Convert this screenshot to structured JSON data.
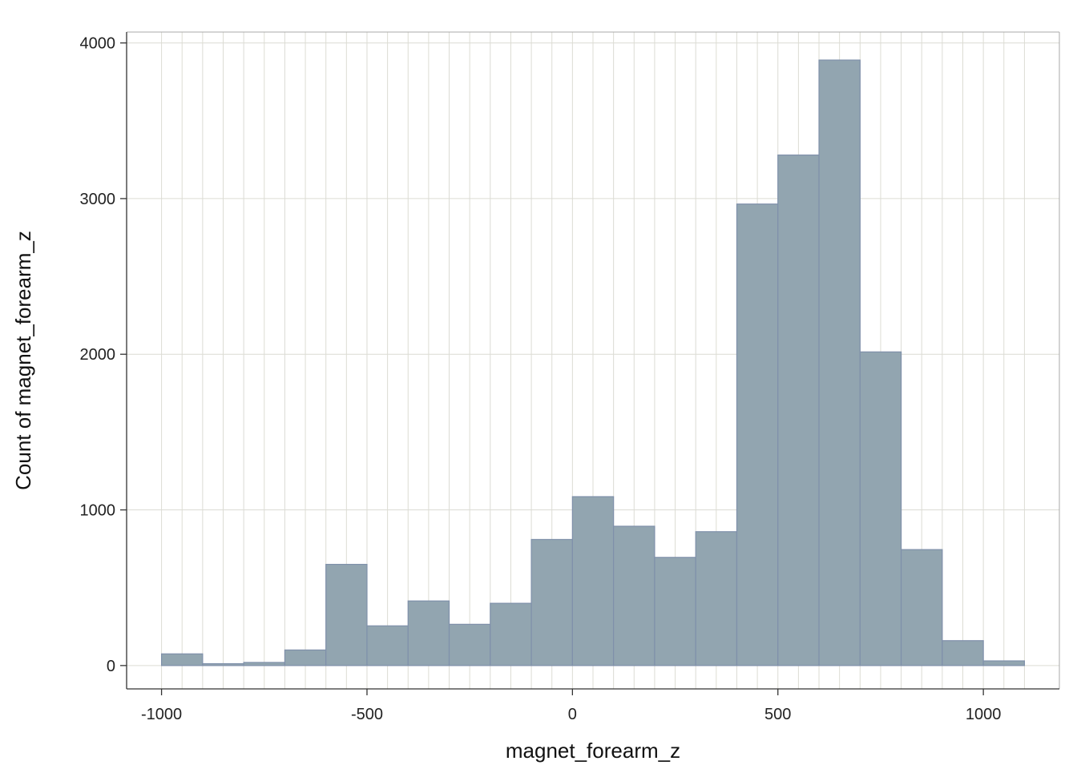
{
  "chart_data": {
    "type": "bar",
    "xlabel": "magnet_forearm_z",
    "ylabel": "Count of magnet_forearm_z",
    "xlim": [
      -1085,
      1185
    ],
    "ylim": [
      -150,
      4070
    ],
    "x_ticks": [
      -1000,
      -500,
      0,
      500,
      1000
    ],
    "x_tick_labels": [
      "-1000",
      "-500",
      "0",
      "500",
      "1000"
    ],
    "y_ticks": [
      0,
      1000,
      2000,
      3000,
      4000
    ],
    "y_tick_labels": [
      "0",
      "1000",
      "2000",
      "3000",
      "4000"
    ],
    "bin_width": 100,
    "bins": [
      {
        "start": -1000,
        "end": -900,
        "count": 75
      },
      {
        "start": -900,
        "end": -800,
        "count": 12
      },
      {
        "start": -800,
        "end": -700,
        "count": 20
      },
      {
        "start": -700,
        "end": -600,
        "count": 100
      },
      {
        "start": -600,
        "end": -500,
        "count": 650
      },
      {
        "start": -500,
        "end": -400,
        "count": 255
      },
      {
        "start": -400,
        "end": -300,
        "count": 415
      },
      {
        "start": -300,
        "end": -200,
        "count": 265
      },
      {
        "start": -200,
        "end": -100,
        "count": 400
      },
      {
        "start": -100,
        "end": 0,
        "count": 810
      },
      {
        "start": 0,
        "end": 100,
        "count": 1085
      },
      {
        "start": 100,
        "end": 200,
        "count": 895
      },
      {
        "start": 200,
        "end": 300,
        "count": 695
      },
      {
        "start": 300,
        "end": 400,
        "count": 860
      },
      {
        "start": 400,
        "end": 500,
        "count": 2965
      },
      {
        "start": 500,
        "end": 600,
        "count": 3280
      },
      {
        "start": 600,
        "end": 700,
        "count": 3890
      },
      {
        "start": 700,
        "end": 800,
        "count": 2015
      },
      {
        "start": 800,
        "end": 900,
        "count": 745
      },
      {
        "start": 900,
        "end": 1000,
        "count": 160
      },
      {
        "start": 1000,
        "end": 1100,
        "count": 30
      }
    ],
    "grid": true,
    "colors": {
      "bar_fill": "#92a5b0",
      "bar_stroke": "#7f90aa",
      "grid": "#dcdcd4",
      "panel_border": "#a8a8a8",
      "axis_line": "#333333"
    }
  }
}
